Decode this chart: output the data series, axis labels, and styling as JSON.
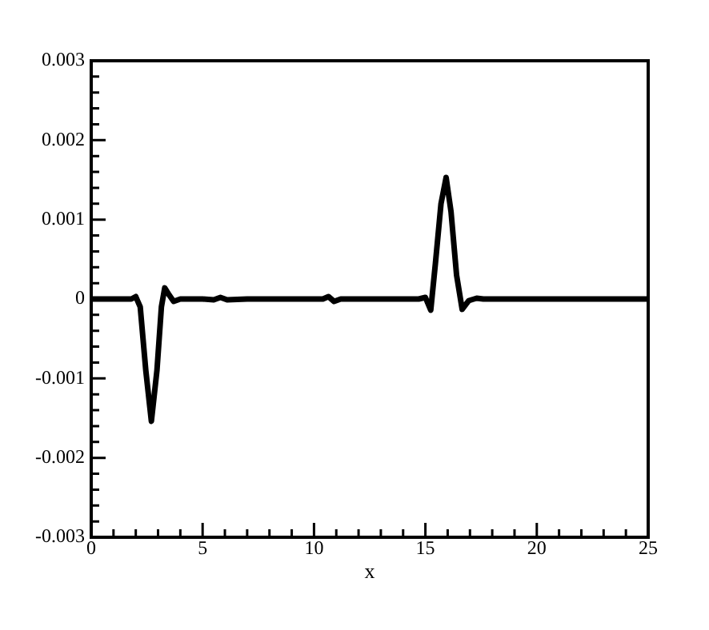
{
  "chart_data": {
    "type": "line",
    "xlabel": "x",
    "series": [
      {
        "color": "#000000",
        "x": [
          0,
          1,
          1.8,
          2.0,
          2.2,
          2.45,
          2.7,
          2.95,
          3.15,
          3.3,
          3.5,
          3.7,
          4.0,
          4.5,
          5.0,
          5.5,
          5.8,
          6.1,
          7,
          8,
          9,
          10,
          10.4,
          10.65,
          10.9,
          11.2,
          12,
          13,
          14,
          14.7,
          15.0,
          15.24,
          15.45,
          15.7,
          15.93,
          16.15,
          16.4,
          16.65,
          16.95,
          17.3,
          17.6,
          18,
          20,
          22,
          25
        ],
        "values": [
          0,
          0,
          0,
          3e-05,
          -0.0001,
          -0.0009,
          -0.00154,
          -0.0009,
          -0.0001,
          0.00014,
          5e-05,
          -3e-05,
          0,
          0,
          0,
          -1e-05,
          2e-05,
          -1e-05,
          0,
          0,
          0,
          0,
          0,
          3e-05,
          -3e-05,
          0,
          0,
          0,
          0,
          0,
          2e-05,
          -0.00014,
          0.00045,
          0.0012,
          0.00153,
          0.0011,
          0.0003,
          -0.00013,
          -2e-05,
          1e-05,
          0,
          0,
          0,
          0,
          0
        ]
      }
    ],
    "xlim": [
      0,
      25
    ],
    "xticks": [
      0,
      5,
      10,
      15,
      20,
      25
    ],
    "ylim": [
      -0.003,
      0.003
    ],
    "yticks": [
      -0.003,
      -0.002,
      -0.001,
      0,
      0.001,
      0.002,
      0.003
    ],
    "grid": false,
    "legend": false,
    "marker": "none",
    "line_style": "solid"
  }
}
